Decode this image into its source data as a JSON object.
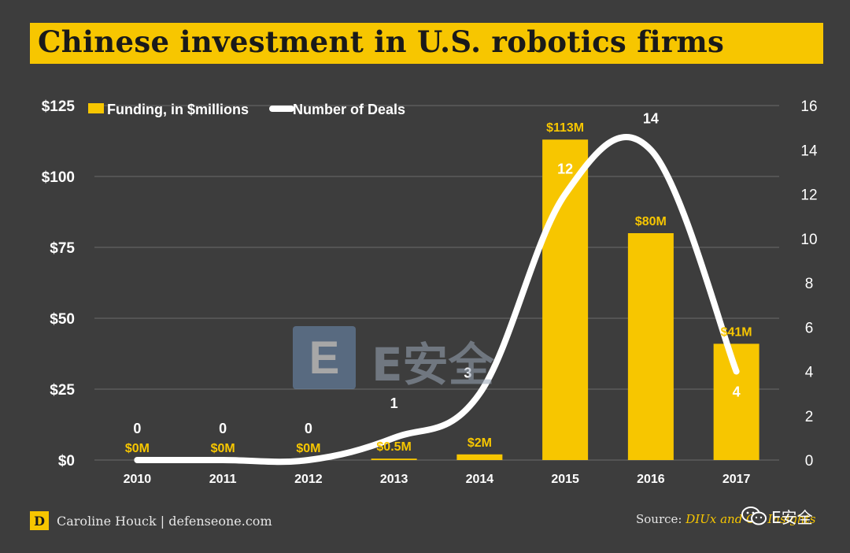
{
  "chart_data": {
    "type": "bar",
    "title": "Chinese investment in U.S. robotics firms",
    "categories": [
      "2010",
      "2011",
      "2012",
      "2013",
      "2014",
      "2015",
      "2016",
      "2017"
    ],
    "series": [
      {
        "name": "Funding, in $millions",
        "type": "bar",
        "axis": "left",
        "values": [
          0,
          0,
          0,
          0.5,
          2,
          113,
          80,
          41
        ],
        "labels": [
          "$0M",
          "$0M",
          "$0M",
          "$0.5M",
          "$2M",
          "$113M",
          "$80M",
          "$41M"
        ]
      },
      {
        "name": "Number of Deals",
        "type": "line",
        "axis": "right",
        "values": [
          0,
          0,
          0,
          1,
          3,
          12,
          14,
          4
        ],
        "labels": [
          "0",
          "0",
          "0",
          "1",
          "3",
          "12",
          "14",
          "4"
        ]
      }
    ],
    "y_left": {
      "min": 0,
      "max": 125,
      "ticks": [
        "$0",
        "$25",
        "$50",
        "$75",
        "$100",
        "$125"
      ],
      "tick_values": [
        0,
        25,
        50,
        75,
        100,
        125
      ]
    },
    "y_right": {
      "min": 0,
      "max": 16,
      "ticks": [
        "0",
        "2",
        "4",
        "6",
        "8",
        "10",
        "12",
        "14",
        "16"
      ],
      "tick_values": [
        0,
        2,
        4,
        6,
        8,
        10,
        12,
        14,
        16
      ]
    },
    "grid": true,
    "legend_position": "top-left"
  },
  "colors": {
    "background": "#3d3d3d",
    "bar": "#f7c600",
    "line": "#ffffff",
    "grid": "#6a6a6a",
    "text": "#ffffff"
  },
  "footer": {
    "logo_letter": "D",
    "author": "Caroline Houck | defenseone.com",
    "source_label": "Source:",
    "source_value": "DIUx and CB Insights"
  },
  "watermark": {
    "logo_letter": "E",
    "text": "E安全",
    "small_text": "E安全",
    "icon": "wechat-icon"
  }
}
